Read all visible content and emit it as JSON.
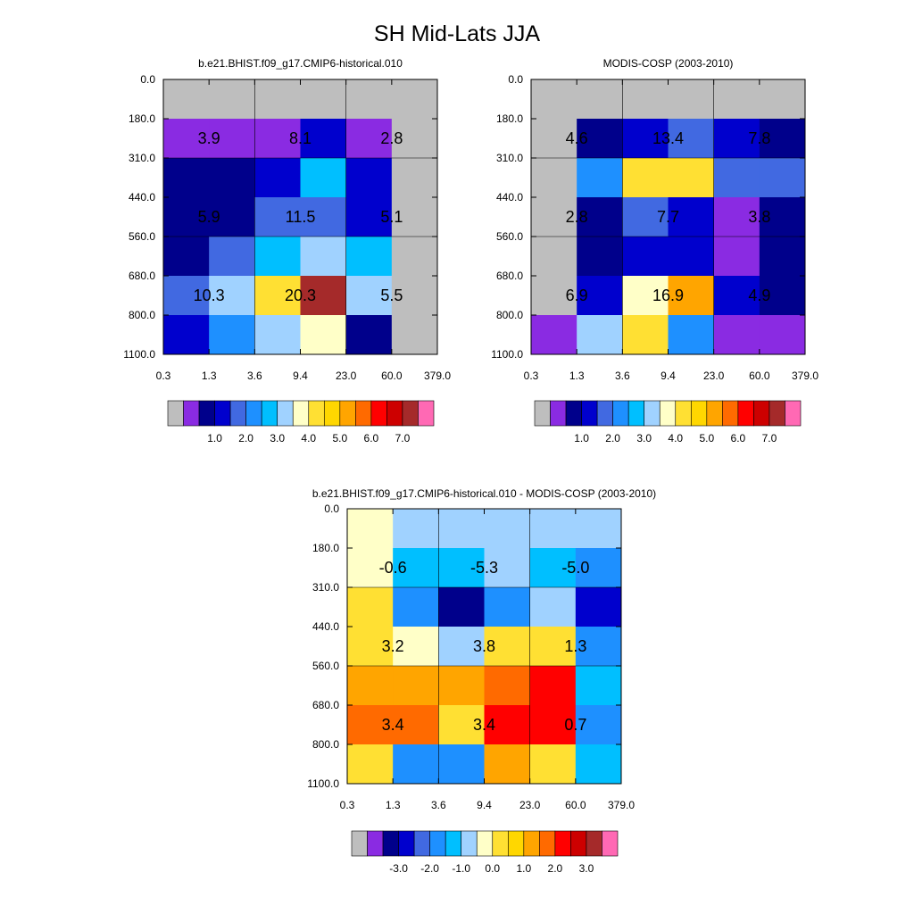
{
  "figure": {
    "title": "SH Mid-Lats JJA"
  },
  "colors": {
    "missing": "#bebebe",
    "abs_palette": [
      "#bebebe",
      "#8a2be2",
      "#00008b",
      "#0000cd",
      "#4169e1",
      "#1e90ff",
      "#00bfff",
      "#a0d2ff",
      "#ffffc8",
      "#ffe033",
      "#ffd700",
      "#ffa500",
      "#ff6a00",
      "#ff0000",
      "#cd0000",
      "#a52a2a",
      "#ff69b4"
    ],
    "diff_palette": [
      "#bebebe",
      "#8a2be2",
      "#00008b",
      "#0000cd",
      "#4169e1",
      "#1e90ff",
      "#00bfff",
      "#a0d2ff",
      "#ffffc8",
      "#ffe033",
      "#ffd700",
      "#ffa500",
      "#ff6a00",
      "#ff0000",
      "#cd0000",
      "#a52a2a",
      "#ff69b4"
    ]
  },
  "chart_data": [
    {
      "type": "heatmap",
      "title": "b.e21.BHIST.f09_g17.CMIP6-historical.010",
      "xlabel": "",
      "ylabel": "",
      "x_tick_labels": [
        "0.3",
        "1.3",
        "3.6",
        "9.4",
        "23.0",
        "60.0",
        "379.0"
      ],
      "y_tick_labels": [
        "0.0",
        "180.0",
        "310.0",
        "440.0",
        "560.0",
        "680.0",
        "800.0",
        "1100.0"
      ],
      "cell_colors": [
        [
          "#bebebe",
          "#bebebe",
          "#bebebe",
          "#bebebe",
          "#bebebe",
          "#bebebe"
        ],
        [
          "#8a2be2",
          "#8a2be2",
          "#8a2be2",
          "#0000cd",
          "#8a2be2",
          "#bebebe"
        ],
        [
          "#00008b",
          "#00008b",
          "#0000cd",
          "#00bfff",
          "#0000cd",
          "#bebebe"
        ],
        [
          "#00008b",
          "#00008b",
          "#4169e1",
          "#4169e1",
          "#0000cd",
          "#bebebe"
        ],
        [
          "#00008b",
          "#4169e1",
          "#00bfff",
          "#a0d2ff",
          "#00bfff",
          "#bebebe"
        ],
        [
          "#4169e1",
          "#a0d2ff",
          "#ffe033",
          "#a52a2a",
          "#a0d2ff",
          "#bebebe"
        ],
        [
          "#0000cd",
          "#1e90ff",
          "#a0d2ff",
          "#ffffc8",
          "#00008b",
          "#bebebe"
        ]
      ],
      "group_labels": [
        [
          "3.9",
          "8.1",
          "2.8"
        ],
        [
          "5.9",
          "11.5",
          "5.1"
        ],
        [
          "10.3",
          "20.3",
          "5.5"
        ]
      ],
      "colorbar": {
        "tick_labels": [
          "1.0",
          "2.0",
          "3.0",
          "4.0",
          "5.0",
          "6.0",
          "7.0"
        ],
        "swatches": [
          "#bebebe",
          "#8a2be2",
          "#00008b",
          "#0000cd",
          "#4169e1",
          "#1e90ff",
          "#00bfff",
          "#a0d2ff",
          "#ffffc8",
          "#ffe033",
          "#ffd700",
          "#ffa500",
          "#ff6a00",
          "#ff0000",
          "#cd0000",
          "#a52a2a",
          "#ff69b4"
        ]
      }
    },
    {
      "type": "heatmap",
      "title": "MODIS-COSP (2003-2010)",
      "xlabel": "",
      "ylabel": "",
      "x_tick_labels": [
        "0.3",
        "1.3",
        "3.6",
        "9.4",
        "23.0",
        "60.0",
        "379.0"
      ],
      "y_tick_labels": [
        "0.0",
        "180.0",
        "310.0",
        "440.0",
        "560.0",
        "680.0",
        "800.0",
        "1100.0"
      ],
      "cell_colors": [
        [
          "#bebebe",
          "#bebebe",
          "#bebebe",
          "#bebebe",
          "#bebebe",
          "#bebebe"
        ],
        [
          "#bebebe",
          "#00008b",
          "#0000cd",
          "#4169e1",
          "#0000cd",
          "#00008b"
        ],
        [
          "#bebebe",
          "#1e90ff",
          "#ffe033",
          "#ffe033",
          "#4169e1",
          "#4169e1"
        ],
        [
          "#bebebe",
          "#00008b",
          "#4169e1",
          "#0000cd",
          "#8a2be2",
          "#00008b"
        ],
        [
          "#bebebe",
          "#00008b",
          "#0000cd",
          "#0000cd",
          "#8a2be2",
          "#00008b"
        ],
        [
          "#bebebe",
          "#0000cd",
          "#ffffc8",
          "#ffa500",
          "#0000cd",
          "#00008b"
        ],
        [
          "#8a2be2",
          "#a0d2ff",
          "#ffe033",
          "#1e90ff",
          "#8a2be2",
          "#8a2be2"
        ]
      ],
      "group_labels": [
        [
          "4.6",
          "13.4",
          "7.8"
        ],
        [
          "2.8",
          "7.7",
          "3.8"
        ],
        [
          "6.9",
          "16.9",
          "4.9"
        ]
      ],
      "colorbar": {
        "tick_labels": [
          "1.0",
          "2.0",
          "3.0",
          "4.0",
          "5.0",
          "6.0",
          "7.0"
        ],
        "swatches": [
          "#bebebe",
          "#8a2be2",
          "#00008b",
          "#0000cd",
          "#4169e1",
          "#1e90ff",
          "#00bfff",
          "#a0d2ff",
          "#ffffc8",
          "#ffe033",
          "#ffd700",
          "#ffa500",
          "#ff6a00",
          "#ff0000",
          "#cd0000",
          "#a52a2a",
          "#ff69b4"
        ]
      }
    },
    {
      "type": "heatmap",
      "title": "b.e21.BHIST.f09_g17.CMIP6-historical.010 - MODIS-COSP (2003-2010)",
      "xlabel": "",
      "ylabel": "",
      "x_tick_labels": [
        "0.3",
        "1.3",
        "3.6",
        "9.4",
        "23.0",
        "60.0",
        "379.0"
      ],
      "y_tick_labels": [
        "0.0",
        "180.0",
        "310.0",
        "440.0",
        "560.0",
        "680.0",
        "800.0",
        "1100.0"
      ],
      "cell_colors": [
        [
          "#ffffc8",
          "#a0d2ff",
          "#a0d2ff",
          "#a0d2ff",
          "#a0d2ff",
          "#a0d2ff"
        ],
        [
          "#ffffc8",
          "#00bfff",
          "#00bfff",
          "#a0d2ff",
          "#00bfff",
          "#1e90ff"
        ],
        [
          "#ffe033",
          "#1e90ff",
          "#00008b",
          "#1e90ff",
          "#a0d2ff",
          "#0000cd"
        ],
        [
          "#ffe033",
          "#ffffc8",
          "#a0d2ff",
          "#ffe033",
          "#ffe033",
          "#1e90ff"
        ],
        [
          "#ffa500",
          "#ffa500",
          "#ffa500",
          "#ff6a00",
          "#ff0000",
          "#00bfff"
        ],
        [
          "#ff6a00",
          "#ff6a00",
          "#ffe033",
          "#ff0000",
          "#ff0000",
          "#1e90ff"
        ],
        [
          "#ffe033",
          "#1e90ff",
          "#1e90ff",
          "#ffa500",
          "#ffe033",
          "#00bfff"
        ]
      ],
      "group_labels": [
        [
          "-0.6",
          "-5.3",
          "-5.0"
        ],
        [
          "3.2",
          "3.8",
          "1.3"
        ],
        [
          "3.4",
          "3.4",
          "0.7"
        ]
      ],
      "colorbar": {
        "tick_labels": [
          "-3.0",
          "-2.0",
          "-1.0",
          "0.0",
          "1.0",
          "2.0",
          "3.0"
        ],
        "swatches": [
          "#bebebe",
          "#8a2be2",
          "#00008b",
          "#0000cd",
          "#4169e1",
          "#1e90ff",
          "#00bfff",
          "#a0d2ff",
          "#ffffc8",
          "#ffe033",
          "#ffd700",
          "#ffa500",
          "#ff6a00",
          "#ff0000",
          "#cd0000",
          "#a52a2a",
          "#ff69b4"
        ]
      }
    }
  ]
}
